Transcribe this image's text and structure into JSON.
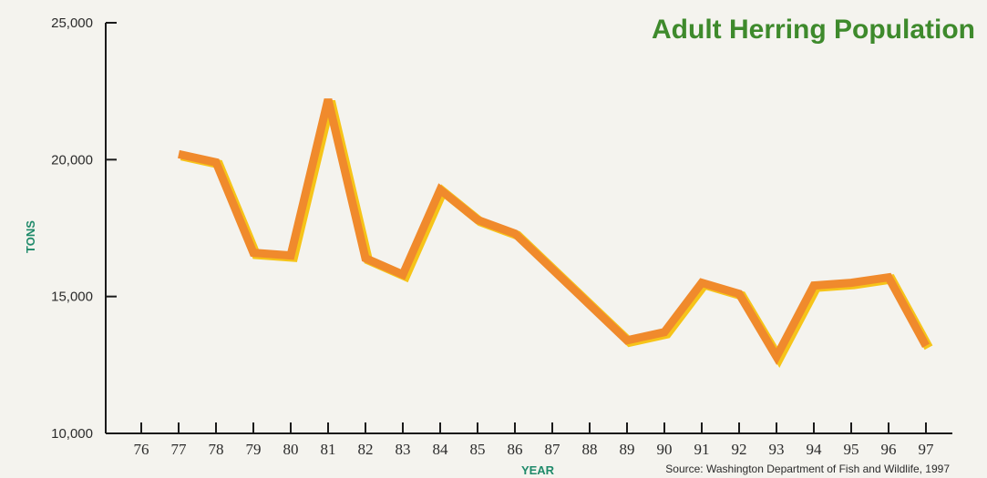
{
  "chart_data": {
    "type": "line",
    "title": "Adult Herring Population",
    "xlabel": "YEAR",
    "ylabel": "TONS",
    "source": "Source: Washington Department of Fish and Wildlife, 1997",
    "x_ticks": [
      "76",
      "77",
      "78",
      "79",
      "80",
      "81",
      "82",
      "83",
      "84",
      "85",
      "86",
      "87",
      "88",
      "89",
      "90",
      "91",
      "92",
      "93",
      "94",
      "95",
      "96",
      "97"
    ],
    "y_ticks": [
      "10,000",
      "15,000",
      "20,000",
      "25,000"
    ],
    "ylim": [
      10000,
      25000
    ],
    "xlim": [
      76,
      97
    ],
    "grid": false,
    "series": [
      {
        "x": [
          77,
          78,
          79,
          80,
          81,
          82,
          83,
          84,
          85,
          86,
          87,
          88,
          89,
          90,
          91,
          92,
          93,
          94,
          95,
          96,
          97
        ],
        "values": [
          20200,
          19900,
          16600,
          16500,
          22200,
          16400,
          15800,
          18900,
          17800,
          17300,
          16000,
          14700,
          13400,
          13700,
          15500,
          15100,
          12800,
          15400,
          15500,
          15700,
          13200
        ]
      }
    ],
    "colors": {
      "line": "#f08a2c",
      "line_shadow": "#f6c419",
      "title": "#3e8a2c",
      "axis_label": "#1f8a6a",
      "axis": "#1a1a1a"
    }
  }
}
